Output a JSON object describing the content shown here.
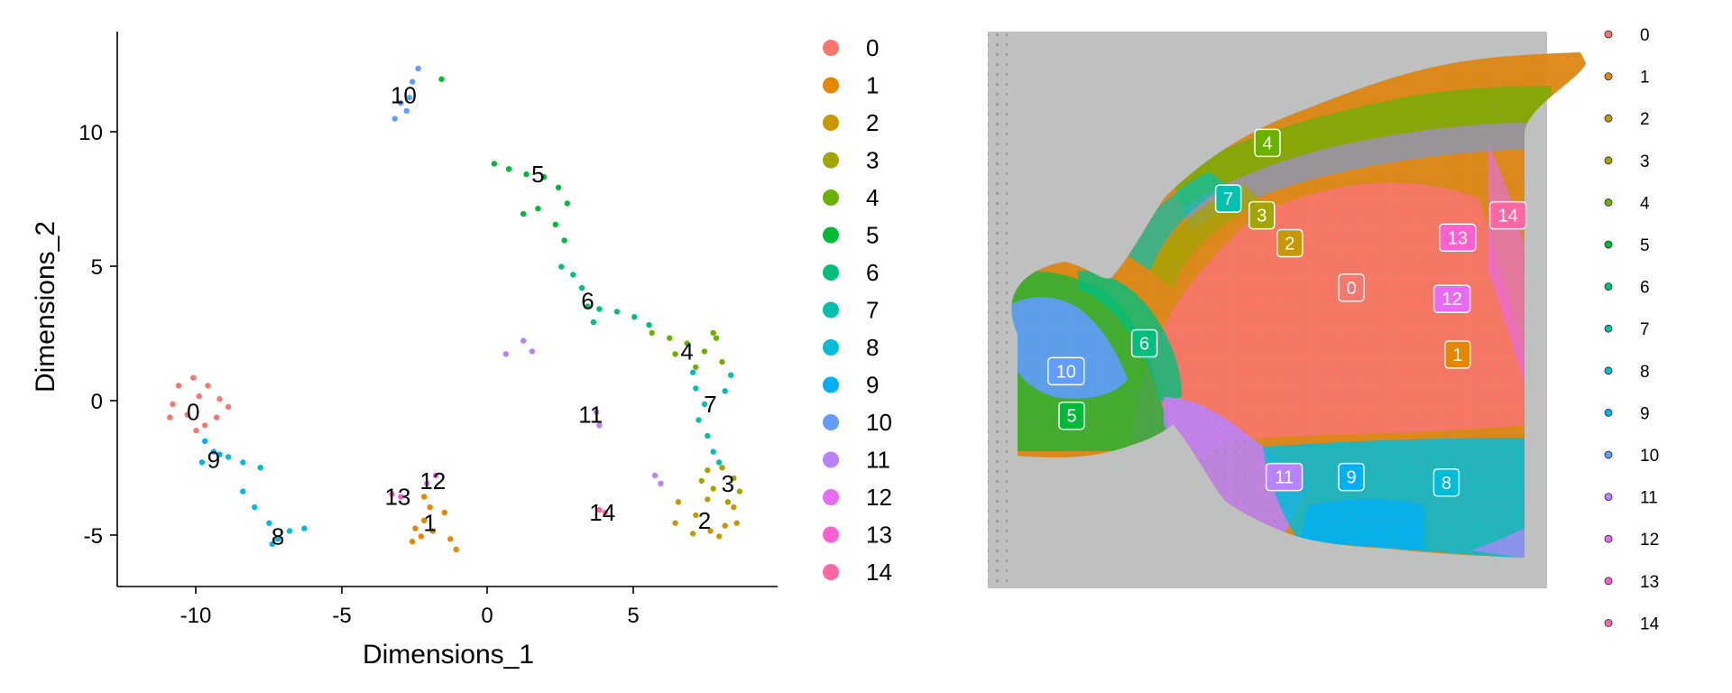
{
  "chart_data": [
    {
      "type": "scatter",
      "title": "",
      "xlabel": "Dimensions_1",
      "ylabel": "Dimensions_2",
      "xlim": [
        -12.8,
        9.8
      ],
      "ylim": [
        -7,
        14
      ],
      "xticks": [
        -10,
        -5,
        0,
        5
      ],
      "yticks": [
        -5,
        0,
        5,
        10
      ],
      "xtick_labels": [
        "-10",
        "-5",
        "0",
        "5"
      ],
      "ytick_labels": [
        "-5",
        "0",
        "5",
        "10"
      ],
      "legend_position": "right",
      "legend": [
        "0",
        "1",
        "2",
        "3",
        "4",
        "5",
        "6",
        "7",
        "8",
        "9",
        "10",
        "11",
        "12",
        "13",
        "14"
      ],
      "cluster_labels": [
        {
          "cluster": "0",
          "x": -10.2,
          "y": -0.4
        },
        {
          "cluster": "1",
          "x": -2.1,
          "y": -4.6
        },
        {
          "cluster": "2",
          "x": 7.3,
          "y": -4.5
        },
        {
          "cluster": "3",
          "x": 8.1,
          "y": -3.1
        },
        {
          "cluster": "4",
          "x": 6.7,
          "y": 1.9
        },
        {
          "cluster": "5",
          "x": 1.6,
          "y": 8.6
        },
        {
          "cluster": "6",
          "x": 3.3,
          "y": 3.8
        },
        {
          "cluster": "7",
          "x": 7.5,
          "y": -0.1
        },
        {
          "cluster": "8",
          "x": -7.3,
          "y": -5.1
        },
        {
          "cluster": "9",
          "x": -9.5,
          "y": -2.2
        },
        {
          "cluster": "10",
          "x": -3.0,
          "y": 11.6
        },
        {
          "cluster": "11",
          "x": 3.4,
          "y": -0.5
        },
        {
          "cluster": "12",
          "x": -2.0,
          "y": -3.0
        },
        {
          "cluster": "13",
          "x": -3.2,
          "y": -3.6
        },
        {
          "cluster": "14",
          "x": 3.8,
          "y": -4.2
        }
      ],
      "series": [
        {
          "name": "0",
          "points": [
            [
              -10.7,
              0.6
            ],
            [
              -10.2,
              0.9
            ],
            [
              -9.7,
              0.6
            ],
            [
              -9.3,
              0.1
            ],
            [
              -10.9,
              -0.1
            ],
            [
              -10.4,
              -0.5
            ],
            [
              -9.8,
              -0.9
            ],
            [
              -9.4,
              -0.6
            ],
            [
              -9.0,
              -0.2
            ],
            [
              -10.1,
              -1.1
            ],
            [
              -11.0,
              -0.6
            ],
            [
              -10.0,
              0.2
            ]
          ]
        },
        {
          "name": "1",
          "points": [
            [
              -2.3,
              -3.6
            ],
            [
              -2.1,
              -4.0
            ],
            [
              -2.3,
              -4.5
            ],
            [
              -2.0,
              -4.9
            ],
            [
              -2.4,
              -5.1
            ],
            [
              -2.7,
              -5.3
            ],
            [
              -1.6,
              -4.2
            ],
            [
              -1.4,
              -5.2
            ],
            [
              -1.2,
              -5.6
            ],
            [
              -2.6,
              -4.8
            ]
          ]
        },
        {
          "name": "2",
          "points": [
            [
              6.4,
              -3.8
            ],
            [
              7.0,
              -4.3
            ],
            [
              7.5,
              -4.9
            ],
            [
              8.0,
              -4.7
            ],
            [
              8.3,
              -4.0
            ],
            [
              7.8,
              -5.1
            ],
            [
              6.9,
              -5.0
            ],
            [
              7.4,
              -3.7
            ],
            [
              6.3,
              -4.6
            ],
            [
              8.4,
              -4.6
            ]
          ]
        },
        {
          "name": "3",
          "points": [
            [
              7.4,
              -2.6
            ],
            [
              7.9,
              -2.5
            ],
            [
              8.3,
              -2.9
            ],
            [
              8.5,
              -3.4
            ],
            [
              8.1,
              -3.8
            ],
            [
              7.6,
              -3.3
            ],
            [
              7.2,
              -3.0
            ]
          ]
        },
        {
          "name": "4",
          "points": [
            [
              5.5,
              2.6
            ],
            [
              6.1,
              2.4
            ],
            [
              6.7,
              2.2
            ],
            [
              7.3,
              1.9
            ],
            [
              7.7,
              2.4
            ],
            [
              7.9,
              1.5
            ],
            [
              6.3,
              1.8
            ],
            [
              7.0,
              1.3
            ],
            [
              7.6,
              2.6
            ]
          ]
        },
        {
          "name": "5",
          "points": [
            [
              0.1,
              9.0
            ],
            [
              0.6,
              8.8
            ],
            [
              1.2,
              8.6
            ],
            [
              1.8,
              8.5
            ],
            [
              2.3,
              8.1
            ],
            [
              2.6,
              7.5
            ],
            [
              1.1,
              7.1
            ],
            [
              1.6,
              7.3
            ],
            [
              2.2,
              6.7
            ],
            [
              2.5,
              6.1
            ],
            [
              -1.7,
              12.2
            ]
          ]
        },
        {
          "name": "6",
          "points": [
            [
              2.4,
              5.1
            ],
            [
              2.8,
              4.8
            ],
            [
              3.1,
              4.3
            ],
            [
              3.3,
              3.6
            ],
            [
              3.7,
              3.5
            ],
            [
              4.3,
              3.4
            ],
            [
              4.9,
              3.2
            ],
            [
              5.4,
              2.9
            ],
            [
              3.5,
              3.0
            ]
          ]
        },
        {
          "name": "7",
          "points": [
            [
              6.9,
              1.1
            ],
            [
              7.0,
              0.5
            ],
            [
              7.3,
              -0.1
            ],
            [
              7.1,
              -0.7
            ],
            [
              7.4,
              -1.3
            ],
            [
              7.6,
              -1.9
            ],
            [
              8.0,
              0.4
            ],
            [
              8.2,
              1.0
            ],
            [
              7.8,
              -2.3
            ]
          ]
        },
        {
          "name": "8",
          "points": [
            [
              -9.0,
              -2.1
            ],
            [
              -8.5,
              -2.3
            ],
            [
              -7.9,
              -2.5
            ],
            [
              -8.5,
              -3.4
            ],
            [
              -8.1,
              -4.0
            ],
            [
              -7.6,
              -4.6
            ],
            [
              -7.3,
              -5.2
            ],
            [
              -6.9,
              -4.9
            ],
            [
              -6.4,
              -4.8
            ],
            [
              -7.5,
              -5.4
            ]
          ]
        },
        {
          "name": "9",
          "points": [
            [
              -9.8,
              -1.5
            ],
            [
              -9.5,
              -1.9
            ],
            [
              -9.9,
              -2.3
            ],
            [
              -9.3,
              -2.0
            ]
          ]
        },
        {
          "name": "10",
          "points": [
            [
              -2.5,
              12.6
            ],
            [
              -2.7,
              12.1
            ],
            [
              -2.8,
              11.5
            ],
            [
              -2.9,
              11.0
            ],
            [
              -3.3,
              10.7
            ],
            [
              -3.1,
              11.3
            ]
          ]
        },
        {
          "name": "11",
          "points": [
            [
              3.6,
              -0.4
            ],
            [
              3.7,
              -0.9
            ],
            [
              1.1,
              2.3
            ],
            [
              1.4,
              1.9
            ],
            [
              0.5,
              1.8
            ],
            [
              5.6,
              -2.8
            ],
            [
              5.8,
              -3.1
            ]
          ]
        },
        {
          "name": "12",
          "points": [
            [
              -1.9,
              -2.8
            ],
            [
              -2.2,
              -3.1
            ]
          ]
        },
        {
          "name": "13",
          "points": [
            [
              -3.4,
              -3.5
            ],
            [
              -3.1,
              -3.6
            ]
          ]
        },
        {
          "name": "14",
          "points": [
            [
              3.7,
              -4.1
            ],
            [
              3.9,
              -4.2
            ]
          ]
        }
      ]
    },
    {
      "type": "scatter",
      "title": "",
      "xlabel": "",
      "ylabel": "",
      "legend_position": "right",
      "legend": [
        "0",
        "1",
        "2",
        "3",
        "4",
        "5",
        "6",
        "7",
        "8",
        "9",
        "10",
        "11",
        "12",
        "13",
        "14"
      ],
      "cluster_labels": [
        {
          "cluster": "0",
          "x": 0.65,
          "y": 0.46
        },
        {
          "cluster": "1",
          "x": 0.84,
          "y": 0.58
        },
        {
          "cluster": "2",
          "x": 0.54,
          "y": 0.38
        },
        {
          "cluster": "3",
          "x": 0.49,
          "y": 0.33
        },
        {
          "cluster": "4",
          "x": 0.5,
          "y": 0.2
        },
        {
          "cluster": "5",
          "x": 0.15,
          "y": 0.69
        },
        {
          "cluster": "6",
          "x": 0.28,
          "y": 0.56
        },
        {
          "cluster": "7",
          "x": 0.43,
          "y": 0.3
        },
        {
          "cluster": "8",
          "x": 0.82,
          "y": 0.81
        },
        {
          "cluster": "9",
          "x": 0.65,
          "y": 0.8
        },
        {
          "cluster": "10",
          "x": 0.14,
          "y": 0.61
        },
        {
          "cluster": "11",
          "x": 0.53,
          "y": 0.8
        },
        {
          "cluster": "12",
          "x": 0.83,
          "y": 0.48
        },
        {
          "cluster": "13",
          "x": 0.84,
          "y": 0.37
        },
        {
          "cluster": "14",
          "x": 0.93,
          "y": 0.33
        }
      ]
    }
  ],
  "colors": {
    "0": "#F8766D",
    "1": "#E58700",
    "2": "#C99800",
    "3": "#A3A500",
    "4": "#6BB100",
    "5": "#00BA38",
    "6": "#00BF7D",
    "7": "#00C0AF",
    "8": "#00BCD8",
    "9": "#00B0F6",
    "10": "#619CFF",
    "11": "#B983FF",
    "12": "#E76BF3",
    "13": "#FD61D1",
    "14": "#FF67A4",
    "tissue_background": "#BFC1C0"
  }
}
